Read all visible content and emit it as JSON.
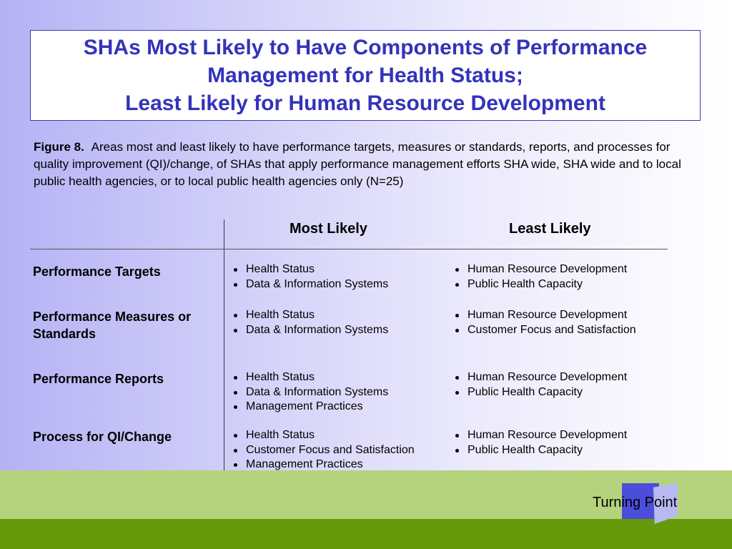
{
  "title": {
    "line1": "SHAs Most Likely to Have Components of Performance",
    "line2": "Management for Health Status;",
    "line3": "Least Likely for Human Resource Development"
  },
  "caption": {
    "figure_label": "Figure 8.",
    "text": "Areas most and least likely to have performance targets, measures or standards, reports, and processes for quality improvement (QI)/change, of SHAs that apply performance management efforts SHA wide, SHA wide and to local public health agencies, or to local public health agencies only (N=25)"
  },
  "table": {
    "headers": {
      "most": "Most Likely",
      "least": "Least Likely"
    },
    "rows": [
      {
        "label": "Performance Targets",
        "most": [
          "Health Status",
          "Data & Information Systems"
        ],
        "least": [
          "Human Resource Development",
          "Public Health Capacity"
        ]
      },
      {
        "label": "Performance Measures or Standards",
        "most": [
          "Health Status",
          "Data & Information Systems"
        ],
        "least": [
          "Human Resource Development",
          "Customer Focus and Satisfaction"
        ]
      },
      {
        "label": "Performance Reports",
        "most": [
          "Health Status",
          "Data & Information Systems",
          "Management Practices"
        ],
        "least": [
          "Human Resource Development",
          "Public Health Capacity"
        ]
      },
      {
        "label": "Process for QI/Change",
        "most": [
          "Health Status",
          "Customer Focus and Satisfaction",
          "Management Practices"
        ],
        "least": [
          "Human Resource Development",
          "Public Health Capacity"
        ]
      }
    ]
  },
  "footer": {
    "logo_text": "Turning Point"
  },
  "colors": {
    "title": "#3333bb",
    "band_light": "#b4d37c",
    "band_dark": "#66990a",
    "logo": "#4d4ddb"
  }
}
